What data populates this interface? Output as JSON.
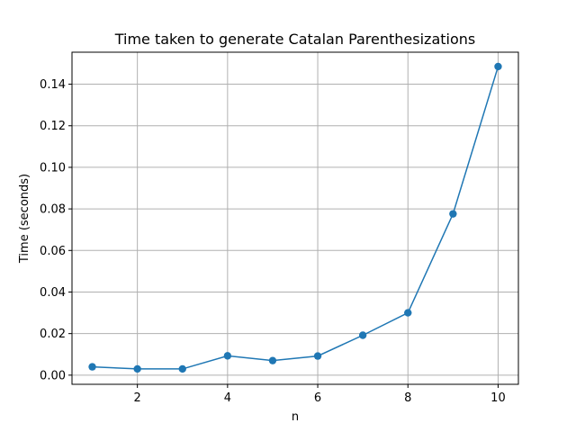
{
  "chart_data": {
    "type": "line",
    "title": "Time taken to generate Catalan Parenthesizations",
    "xlabel": "n",
    "ylabel": "Time (seconds)",
    "xlim": [
      0.55,
      10.45
    ],
    "ylim": [
      -0.0044,
      0.1554
    ],
    "xticks": [
      2,
      4,
      6,
      8,
      10
    ],
    "yticks": [
      0.0,
      0.02,
      0.04,
      0.06,
      0.08,
      0.1,
      0.12,
      0.14
    ],
    "ytick_labels": [
      "0.00",
      "0.02",
      "0.04",
      "0.06",
      "0.08",
      "0.10",
      "0.12",
      "0.14"
    ],
    "grid": true,
    "series": [
      {
        "color": "#1f77b4",
        "marker": "circle",
        "x": [
          1,
          2,
          3,
          4,
          5,
          6,
          7,
          8,
          9,
          10
        ],
        "y": [
          0.004,
          0.003,
          0.003,
          0.0093,
          0.007,
          0.0092,
          0.0192,
          0.03,
          0.0776,
          0.1485
        ]
      }
    ]
  }
}
